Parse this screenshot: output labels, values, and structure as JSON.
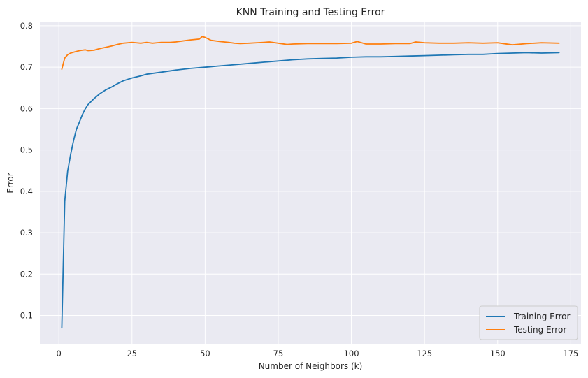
{
  "chart_data": {
    "type": "line",
    "title": "KNN Training and Testing Error",
    "xlabel": "Number of Neighbors (k)",
    "ylabel": "Error",
    "xlim": [
      -6.5,
      178.5
    ],
    "ylim": [
      0.03,
      0.81
    ],
    "xticks": [
      0,
      25,
      50,
      75,
      100,
      125,
      150,
      175
    ],
    "yticks": [
      0.1,
      0.2,
      0.3,
      0.4,
      0.5,
      0.6,
      0.7,
      0.8
    ],
    "xtick_labels": [
      "0",
      "25",
      "50",
      "75",
      "100",
      "125",
      "150",
      "175"
    ],
    "ytick_labels": [
      "0.1",
      "0.2",
      "0.3",
      "0.4",
      "0.5",
      "0.6",
      "0.7",
      "0.8"
    ],
    "grid": true,
    "legend_position": "bottom-right",
    "style": {
      "background": "#eaeaf2",
      "grid_color": "#ffffff"
    },
    "series": [
      {
        "name": "Training Error",
        "color": "#1f77b4",
        "x": [
          1,
          2,
          3,
          4,
          5,
          6,
          7,
          8,
          9,
          10,
          12,
          14,
          16,
          18,
          20,
          22,
          25,
          28,
          30,
          35,
          40,
          45,
          50,
          55,
          60,
          65,
          70,
          75,
          80,
          85,
          90,
          95,
          100,
          105,
          110,
          115,
          120,
          125,
          130,
          135,
          140,
          145,
          150,
          155,
          160,
          165,
          171
        ],
        "values": [
          0.07,
          0.376,
          0.448,
          0.488,
          0.522,
          0.55,
          0.567,
          0.585,
          0.599,
          0.61,
          0.624,
          0.636,
          0.645,
          0.652,
          0.66,
          0.667,
          0.674,
          0.679,
          0.683,
          0.688,
          0.693,
          0.697,
          0.7,
          0.703,
          0.706,
          0.709,
          0.712,
          0.715,
          0.718,
          0.72,
          0.721,
          0.722,
          0.724,
          0.725,
          0.725,
          0.726,
          0.727,
          0.728,
          0.729,
          0.73,
          0.731,
          0.731,
          0.733,
          0.734,
          0.735,
          0.734,
          0.735
        ]
      },
      {
        "name": "Testing Error",
        "color": "#ff7f0e",
        "x": [
          1,
          2,
          3,
          4,
          5,
          6,
          7,
          8,
          9,
          10,
          12,
          14,
          16,
          18,
          20,
          22,
          25,
          28,
          30,
          32,
          35,
          38,
          40,
          42,
          45,
          48,
          49,
          50,
          52,
          55,
          58,
          60,
          62,
          65,
          70,
          72,
          75,
          78,
          80,
          85,
          90,
          95,
          100,
          102,
          105,
          110,
          115,
          120,
          122,
          125,
          130,
          135,
          140,
          145,
          150,
          155,
          160,
          165,
          171
        ],
        "values": [
          0.695,
          0.722,
          0.73,
          0.734,
          0.736,
          0.738,
          0.74,
          0.741,
          0.742,
          0.74,
          0.741,
          0.745,
          0.748,
          0.751,
          0.755,
          0.758,
          0.76,
          0.758,
          0.76,
          0.758,
          0.76,
          0.76,
          0.761,
          0.763,
          0.766,
          0.768,
          0.774,
          0.772,
          0.765,
          0.762,
          0.76,
          0.758,
          0.757,
          0.758,
          0.76,
          0.761,
          0.758,
          0.755,
          0.756,
          0.757,
          0.757,
          0.757,
          0.758,
          0.762,
          0.756,
          0.756,
          0.757,
          0.757,
          0.761,
          0.759,
          0.758,
          0.758,
          0.759,
          0.758,
          0.759,
          0.754,
          0.757,
          0.759,
          0.758
        ]
      }
    ]
  }
}
